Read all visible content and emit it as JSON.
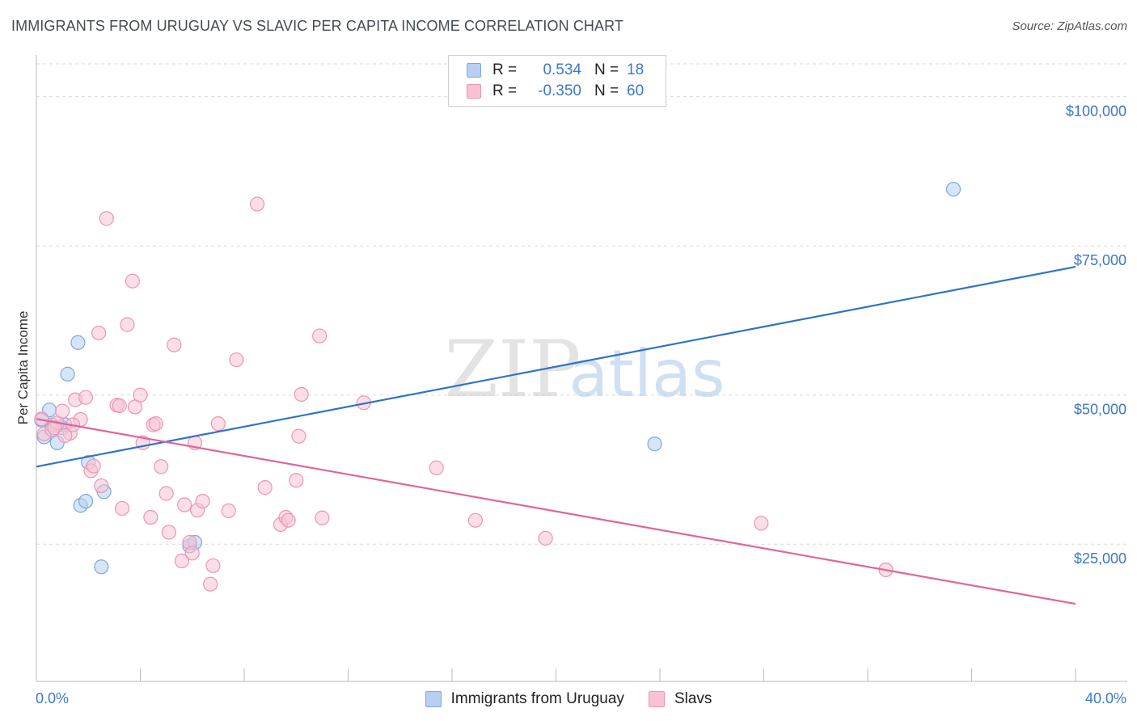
{
  "title": "IMMIGRANTS FROM URUGUAY VS SLAVIC PER CAPITA INCOME CORRELATION CHART",
  "source": "Source: ZipAtlas.com",
  "watermark": {
    "zip": "ZIP",
    "atlas": "atlas"
  },
  "colors": {
    "blue_point_fill": "#b7d0f2",
    "blue_point_stroke": "#7ea7e0",
    "blue_line": "#2f72c9",
    "pink_point_fill": "#f7c3d3",
    "pink_point_stroke": "#eb96b1",
    "pink_line": "#e0659a",
    "accent_text": "#3d78c9",
    "grid": "#d9d9d9"
  },
  "legend": {
    "rows": [
      {
        "r_label": "R =",
        "r_value": "0.534",
        "n_label": "N =",
        "n_value": "18",
        "color": "#b7d0f2",
        "border": "#7ea7e0"
      },
      {
        "r_label": "R =",
        "r_value": "-0.350",
        "n_label": "N =",
        "n_value": "60",
        "color": "#f7c3d3",
        "border": "#eb96b1"
      }
    ]
  },
  "bottom_legend": [
    {
      "label": "Immigrants from Uruguay",
      "color": "#b7d0f2",
      "border": "#7ea7e0"
    },
    {
      "label": "Slavs",
      "color": "#f7c3d3",
      "border": "#eb96b1"
    }
  ],
  "chart_data": {
    "type": "scatter",
    "title": "IMMIGRANTS FROM URUGUAY VS SLAVIC PER CAPITA INCOME CORRELATION CHART",
    "xlabel": "",
    "ylabel": "Per Capita Income",
    "xlim": [
      0,
      40
    ],
    "ylim": [
      2000,
      107000
    ],
    "x_tick_labels": [
      {
        "value": 0,
        "label": "0.0%"
      },
      {
        "value": 40,
        "label": "40.0%"
      }
    ],
    "y_ticks": [
      {
        "value": 25000,
        "label": "$25,000"
      },
      {
        "value": 50000,
        "label": "$50,000"
      },
      {
        "value": 75000,
        "label": "$75,000"
      },
      {
        "value": 100000,
        "label": "$100,000"
      }
    ],
    "grid": "horizontal dashed",
    "series": [
      {
        "name": "Immigrants from Uruguay",
        "color": "#b7d0f2",
        "r": 0.534,
        "n": 18,
        "trend": {
          "x": [
            0,
            40
          ],
          "y": [
            38000,
            71500
          ]
        },
        "points": [
          [
            0.3,
            43000
          ],
          [
            0.5,
            47500
          ],
          [
            0.6,
            45000
          ],
          [
            0.8,
            42000
          ],
          [
            1.0,
            44500
          ],
          [
            1.1,
            45000
          ],
          [
            1.2,
            53500
          ],
          [
            1.6,
            58800
          ],
          [
            1.7,
            31500
          ],
          [
            1.9,
            32200
          ],
          [
            2.0,
            38700
          ],
          [
            2.5,
            21200
          ],
          [
            2.6,
            33800
          ],
          [
            5.9,
            24700
          ],
          [
            6.1,
            25300
          ],
          [
            23.8,
            41800
          ],
          [
            35.3,
            84500
          ],
          [
            0.2,
            45800
          ]
        ]
      },
      {
        "name": "Slavs",
        "color": "#f7c3d3",
        "r": -0.35,
        "n": 60,
        "trend": {
          "x": [
            0,
            40
          ],
          "y": [
            46000,
            15000
          ]
        },
        "points": [
          [
            0.2,
            46000
          ],
          [
            0.3,
            43500
          ],
          [
            0.6,
            44200
          ],
          [
            0.8,
            45300
          ],
          [
            1.0,
            47300
          ],
          [
            1.3,
            43600
          ],
          [
            1.5,
            49200
          ],
          [
            1.7,
            45900
          ],
          [
            1.9,
            49600
          ],
          [
            2.1,
            37300
          ],
          [
            2.2,
            38100
          ],
          [
            2.4,
            60400
          ],
          [
            2.5,
            34800
          ],
          [
            2.7,
            79600
          ],
          [
            3.1,
            48300
          ],
          [
            3.2,
            48200
          ],
          [
            3.3,
            31000
          ],
          [
            3.5,
            61800
          ],
          [
            3.7,
            69100
          ],
          [
            3.8,
            48000
          ],
          [
            4.0,
            50000
          ],
          [
            4.1,
            42000
          ],
          [
            4.4,
            29500
          ],
          [
            4.5,
            45000
          ],
          [
            4.8,
            38000
          ],
          [
            5.0,
            33500
          ],
          [
            5.1,
            27000
          ],
          [
            5.3,
            58400
          ],
          [
            5.6,
            22200
          ],
          [
            5.7,
            31600
          ],
          [
            5.9,
            25300
          ],
          [
            6.1,
            42000
          ],
          [
            6.0,
            23500
          ],
          [
            6.2,
            30700
          ],
          [
            6.4,
            32200
          ],
          [
            6.7,
            18300
          ],
          [
            6.8,
            21400
          ],
          [
            7.0,
            45200
          ],
          [
            7.4,
            30600
          ],
          [
            7.7,
            55900
          ],
          [
            8.5,
            82000
          ],
          [
            8.8,
            34500
          ],
          [
            9.4,
            28300
          ],
          [
            9.6,
            29500
          ],
          [
            9.7,
            29000
          ],
          [
            10.0,
            35700
          ],
          [
            10.1,
            43100
          ],
          [
            10.2,
            50100
          ],
          [
            10.9,
            59900
          ],
          [
            11.0,
            29400
          ],
          [
            12.6,
            48700
          ],
          [
            15.4,
            37800
          ],
          [
            16.9,
            29000
          ],
          [
            19.6,
            26000
          ],
          [
            27.9,
            28500
          ],
          [
            32.7,
            20700
          ],
          [
            4.6,
            45200
          ],
          [
            1.4,
            45000
          ],
          [
            0.7,
            44500
          ],
          [
            1.1,
            43200
          ]
        ]
      }
    ]
  }
}
